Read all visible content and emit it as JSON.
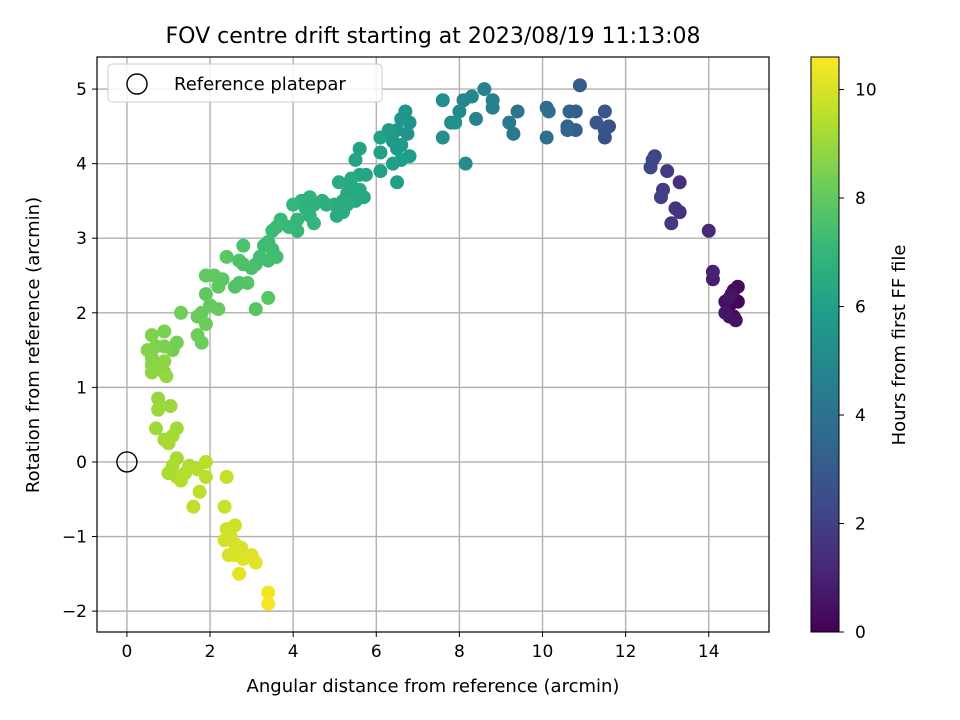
{
  "chart_data": {
    "type": "scatter",
    "title": "FOV centre drift starting at 2023/08/19 11:13:08",
    "xlabel": "Angular distance from reference (arcmin)",
    "ylabel": "Rotation from reference (arcmin)",
    "xlim": [
      -0.72,
      15.45
    ],
    "ylim": [
      -2.28,
      5.43
    ],
    "xticks": [
      0,
      2,
      4,
      6,
      8,
      10,
      12,
      14
    ],
    "yticks": [
      -2,
      -1,
      0,
      1,
      2,
      3,
      4,
      5
    ],
    "xtick_labels": [
      "0",
      "2",
      "4",
      "6",
      "8",
      "10",
      "12",
      "14"
    ],
    "ytick_labels": [
      "−2",
      "−1",
      "0",
      "1",
      "2",
      "3",
      "4",
      "5"
    ],
    "grid": true,
    "legend": {
      "placement": "top-left",
      "entries": [
        "Reference platepar"
      ]
    },
    "reference_point": {
      "name": "Reference platepar",
      "x": 0,
      "y": 0
    },
    "colorbar": {
      "label": "Hours from first FF file",
      "range": [
        0,
        10.6
      ],
      "ticks": [
        0,
        2,
        4,
        6,
        8,
        10
      ],
      "tick_labels": [
        "0",
        "2",
        "4",
        "6",
        "8",
        "10"
      ],
      "colormap": "viridis"
    },
    "series": [
      {
        "points": [
          {
            "x": 14.6,
            "y": 2.15,
            "c": 0.05
          },
          {
            "x": 14.7,
            "y": 2.15,
            "c": 0.1
          },
          {
            "x": 14.5,
            "y": 2.1,
            "c": 0.15
          },
          {
            "x": 14.6,
            "y": 2.3,
            "c": 0.2
          },
          {
            "x": 14.5,
            "y": 1.95,
            "c": 0.25
          },
          {
            "x": 14.7,
            "y": 2.35,
            "c": 0.3
          },
          {
            "x": 14.6,
            "y": 1.95,
            "c": 0.35
          },
          {
            "x": 14.4,
            "y": 2.15,
            "c": 0.4
          },
          {
            "x": 14.55,
            "y": 2.25,
            "c": 0.45
          },
          {
            "x": 14.65,
            "y": 1.9,
            "c": 0.5
          },
          {
            "x": 14.5,
            "y": 2.2,
            "c": 0.55
          },
          {
            "x": 14.4,
            "y": 2.0,
            "c": 0.6
          },
          {
            "x": 14.1,
            "y": 2.45,
            "c": 0.9
          },
          {
            "x": 14.1,
            "y": 2.55,
            "c": 1.0
          },
          {
            "x": 14.0,
            "y": 3.1,
            "c": 1.2
          },
          {
            "x": 13.3,
            "y": 3.75,
            "c": 1.4
          },
          {
            "x": 13.3,
            "y": 3.35,
            "c": 1.5
          },
          {
            "x": 13.2,
            "y": 3.4,
            "c": 1.6
          },
          {
            "x": 13.1,
            "y": 3.2,
            "c": 1.7
          },
          {
            "x": 13.0,
            "y": 3.9,
            "c": 1.8
          },
          {
            "x": 12.9,
            "y": 3.65,
            "c": 1.9
          },
          {
            "x": 12.85,
            "y": 3.55,
            "c": 2.0
          },
          {
            "x": 12.7,
            "y": 4.1,
            "c": 2.1
          },
          {
            "x": 12.6,
            "y": 3.95,
            "c": 2.2
          },
          {
            "x": 12.65,
            "y": 4.05,
            "c": 2.3
          },
          {
            "x": 11.6,
            "y": 4.5,
            "c": 2.5
          },
          {
            "x": 11.5,
            "y": 4.35,
            "c": 2.6
          },
          {
            "x": 11.5,
            "y": 4.45,
            "c": 2.7
          },
          {
            "x": 11.5,
            "y": 4.7,
            "c": 2.8
          },
          {
            "x": 11.3,
            "y": 4.55,
            "c": 2.9
          },
          {
            "x": 10.9,
            "y": 5.05,
            "c": 3.0
          },
          {
            "x": 10.8,
            "y": 4.7,
            "c": 3.1
          },
          {
            "x": 10.8,
            "y": 4.45,
            "c": 3.2
          },
          {
            "x": 10.65,
            "y": 4.7,
            "c": 3.3
          },
          {
            "x": 10.6,
            "y": 4.5,
            "c": 3.4
          },
          {
            "x": 10.6,
            "y": 4.45,
            "c": 3.5
          },
          {
            "x": 10.1,
            "y": 4.75,
            "c": 3.7
          },
          {
            "x": 10.15,
            "y": 4.7,
            "c": 3.8
          },
          {
            "x": 10.1,
            "y": 4.35,
            "c": 3.9
          },
          {
            "x": 9.4,
            "y": 4.7,
            "c": 4.1
          },
          {
            "x": 9.3,
            "y": 4.4,
            "c": 4.2
          },
          {
            "x": 9.2,
            "y": 4.55,
            "c": 4.3
          },
          {
            "x": 8.8,
            "y": 4.85,
            "c": 4.5
          },
          {
            "x": 8.8,
            "y": 4.75,
            "c": 4.6
          },
          {
            "x": 8.6,
            "y": 5.0,
            "c": 4.7
          },
          {
            "x": 8.4,
            "y": 4.6,
            "c": 4.8
          },
          {
            "x": 8.3,
            "y": 4.9,
            "c": 4.85
          },
          {
            "x": 8.1,
            "y": 4.85,
            "c": 4.9
          },
          {
            "x": 8.0,
            "y": 4.7,
            "c": 5.0
          },
          {
            "x": 7.8,
            "y": 4.55,
            "c": 5.1
          },
          {
            "x": 8.15,
            "y": 4.0,
            "c": 5.2
          },
          {
            "x": 7.6,
            "y": 4.85,
            "c": 5.2
          },
          {
            "x": 7.6,
            "y": 4.35,
            "c": 5.3
          },
          {
            "x": 7.9,
            "y": 4.55,
            "c": 5.3
          },
          {
            "x": 6.8,
            "y": 4.55,
            "c": 5.4
          },
          {
            "x": 6.75,
            "y": 4.4,
            "c": 5.45
          },
          {
            "x": 6.7,
            "y": 4.7,
            "c": 5.5
          },
          {
            "x": 6.6,
            "y": 4.6,
            "c": 5.55
          },
          {
            "x": 6.5,
            "y": 4.45,
            "c": 5.6
          },
          {
            "x": 6.4,
            "y": 4.3,
            "c": 5.65
          },
          {
            "x": 6.5,
            "y": 4.2,
            "c": 5.7
          },
          {
            "x": 6.6,
            "y": 4.25,
            "c": 5.75
          },
          {
            "x": 6.3,
            "y": 4.45,
            "c": 5.8
          },
          {
            "x": 6.8,
            "y": 4.1,
            "c": 5.85
          },
          {
            "x": 6.6,
            "y": 4.05,
            "c": 5.9
          },
          {
            "x": 6.4,
            "y": 4.0,
            "c": 5.95
          },
          {
            "x": 6.5,
            "y": 3.75,
            "c": 6.0
          },
          {
            "x": 6.1,
            "y": 3.9,
            "c": 6.0
          },
          {
            "x": 6.1,
            "y": 4.15,
            "c": 6.05
          },
          {
            "x": 6.1,
            "y": 4.35,
            "c": 6.1
          },
          {
            "x": 5.6,
            "y": 4.2,
            "c": 6.1
          },
          {
            "x": 5.5,
            "y": 4.05,
            "c": 6.15
          },
          {
            "x": 5.75,
            "y": 3.85,
            "c": 6.2
          },
          {
            "x": 5.6,
            "y": 3.85,
            "c": 6.2
          },
          {
            "x": 5.4,
            "y": 3.7,
            "c": 6.25
          },
          {
            "x": 5.5,
            "y": 3.5,
            "c": 6.3
          },
          {
            "x": 5.7,
            "y": 3.55,
            "c": 6.3
          },
          {
            "x": 5.4,
            "y": 3.8,
            "c": 6.35
          },
          {
            "x": 5.6,
            "y": 3.65,
            "c": 6.4
          },
          {
            "x": 5.3,
            "y": 3.6,
            "c": 6.4
          },
          {
            "x": 5.2,
            "y": 3.5,
            "c": 6.45
          },
          {
            "x": 5.1,
            "y": 3.75,
            "c": 6.5
          },
          {
            "x": 5.0,
            "y": 3.45,
            "c": 6.5
          },
          {
            "x": 5.05,
            "y": 3.3,
            "c": 6.55
          },
          {
            "x": 5.3,
            "y": 3.45,
            "c": 6.6
          },
          {
            "x": 5.2,
            "y": 3.35,
            "c": 6.6
          },
          {
            "x": 4.7,
            "y": 3.5,
            "c": 6.7
          },
          {
            "x": 4.8,
            "y": 3.45,
            "c": 6.7
          },
          {
            "x": 4.5,
            "y": 3.45,
            "c": 6.75
          },
          {
            "x": 4.4,
            "y": 3.55,
            "c": 6.8
          },
          {
            "x": 4.3,
            "y": 3.4,
            "c": 6.85
          },
          {
            "x": 4.2,
            "y": 3.5,
            "c": 6.9
          },
          {
            "x": 4.4,
            "y": 3.3,
            "c": 6.9
          },
          {
            "x": 4.5,
            "y": 3.2,
            "c": 6.95
          },
          {
            "x": 4.1,
            "y": 3.25,
            "c": 7.0
          },
          {
            "x": 4.0,
            "y": 3.45,
            "c": 7.0
          },
          {
            "x": 4.1,
            "y": 3.1,
            "c": 7.05
          },
          {
            "x": 3.9,
            "y": 3.15,
            "c": 7.1
          },
          {
            "x": 3.7,
            "y": 3.25,
            "c": 7.15
          },
          {
            "x": 3.6,
            "y": 3.15,
            "c": 7.2
          },
          {
            "x": 3.5,
            "y": 3.1,
            "c": 7.2
          },
          {
            "x": 3.4,
            "y": 2.95,
            "c": 7.25
          },
          {
            "x": 3.5,
            "y": 2.85,
            "c": 7.3
          },
          {
            "x": 3.3,
            "y": 2.9,
            "c": 7.3
          },
          {
            "x": 3.6,
            "y": 2.75,
            "c": 7.35
          },
          {
            "x": 3.4,
            "y": 2.7,
            "c": 7.4
          },
          {
            "x": 3.2,
            "y": 2.75,
            "c": 7.4
          },
          {
            "x": 3.1,
            "y": 2.65,
            "c": 7.45
          },
          {
            "x": 3.0,
            "y": 2.6,
            "c": 7.5
          },
          {
            "x": 2.8,
            "y": 2.65,
            "c": 7.55
          },
          {
            "x": 2.7,
            "y": 2.7,
            "c": 7.6
          },
          {
            "x": 2.8,
            "y": 2.9,
            "c": 7.6
          },
          {
            "x": 2.6,
            "y": 2.35,
            "c": 7.65
          },
          {
            "x": 2.7,
            "y": 2.4,
            "c": 7.7
          },
          {
            "x": 2.9,
            "y": 2.4,
            "c": 7.75
          },
          {
            "x": 3.4,
            "y": 2.2,
            "c": 7.8
          },
          {
            "x": 3.1,
            "y": 2.05,
            "c": 7.8
          },
          {
            "x": 2.4,
            "y": 2.75,
            "c": 7.85
          },
          {
            "x": 2.3,
            "y": 2.45,
            "c": 7.9
          },
          {
            "x": 2.2,
            "y": 2.35,
            "c": 7.9
          },
          {
            "x": 2.1,
            "y": 2.5,
            "c": 7.95
          },
          {
            "x": 1.9,
            "y": 2.5,
            "c": 8.0
          },
          {
            "x": 1.9,
            "y": 2.25,
            "c": 8.0
          },
          {
            "x": 2.0,
            "y": 2.1,
            "c": 8.05
          },
          {
            "x": 2.2,
            "y": 2.05,
            "c": 8.1
          },
          {
            "x": 1.8,
            "y": 2.0,
            "c": 8.1
          },
          {
            "x": 1.7,
            "y": 1.95,
            "c": 8.15
          },
          {
            "x": 1.9,
            "y": 1.85,
            "c": 8.2
          },
          {
            "x": 1.8,
            "y": 1.6,
            "c": 8.2
          },
          {
            "x": 1.7,
            "y": 1.7,
            "c": 8.25
          },
          {
            "x": 1.3,
            "y": 2.0,
            "c": 8.3
          },
          {
            "x": 1.2,
            "y": 1.6,
            "c": 8.35
          },
          {
            "x": 1.1,
            "y": 1.5,
            "c": 8.4
          },
          {
            "x": 0.9,
            "y": 1.75,
            "c": 8.45
          },
          {
            "x": 0.9,
            "y": 1.55,
            "c": 8.5
          },
          {
            "x": 0.7,
            "y": 1.55,
            "c": 8.5
          },
          {
            "x": 0.6,
            "y": 1.7,
            "c": 8.55
          },
          {
            "x": 0.5,
            "y": 1.5,
            "c": 8.6
          },
          {
            "x": 0.6,
            "y": 1.4,
            "c": 8.65
          },
          {
            "x": 0.6,
            "y": 1.3,
            "c": 8.7
          },
          {
            "x": 0.7,
            "y": 1.25,
            "c": 8.7
          },
          {
            "x": 0.9,
            "y": 1.2,
            "c": 8.75
          },
          {
            "x": 0.9,
            "y": 1.35,
            "c": 8.8
          },
          {
            "x": 0.6,
            "y": 1.2,
            "c": 8.8
          },
          {
            "x": 0.95,
            "y": 1.15,
            "c": 8.85
          },
          {
            "x": 0.75,
            "y": 0.85,
            "c": 8.9
          },
          {
            "x": 0.8,
            "y": 0.75,
            "c": 8.95
          },
          {
            "x": 1.05,
            "y": 0.75,
            "c": 9.0
          },
          {
            "x": 0.75,
            "y": 0.7,
            "c": 9.0
          },
          {
            "x": 0.7,
            "y": 0.45,
            "c": 9.05
          },
          {
            "x": 1.2,
            "y": 0.45,
            "c": 9.1
          },
          {
            "x": 0.9,
            "y": 0.3,
            "c": 9.1
          },
          {
            "x": 1.1,
            "y": 0.35,
            "c": 9.15
          },
          {
            "x": 1.0,
            "y": 0.25,
            "c": 9.2
          },
          {
            "x": 1.2,
            "y": 0.05,
            "c": 9.2
          },
          {
            "x": 1.1,
            "y": -0.05,
            "c": 9.25
          },
          {
            "x": 1.0,
            "y": -0.15,
            "c": 9.3
          },
          {
            "x": 1.2,
            "y": -0.2,
            "c": 9.3
          },
          {
            "x": 1.5,
            "y": -0.05,
            "c": 9.35
          },
          {
            "x": 1.4,
            "y": -0.15,
            "c": 9.4
          },
          {
            "x": 1.3,
            "y": -0.25,
            "c": 9.4
          },
          {
            "x": 1.7,
            "y": -0.1,
            "c": 9.45
          },
          {
            "x": 1.9,
            "y": 0.0,
            "c": 9.5
          },
          {
            "x": 1.9,
            "y": -0.2,
            "c": 9.5
          },
          {
            "x": 1.75,
            "y": -0.4,
            "c": 9.55
          },
          {
            "x": 1.6,
            "y": -0.6,
            "c": 9.6
          },
          {
            "x": 2.4,
            "y": -0.2,
            "c": 9.7
          },
          {
            "x": 2.35,
            "y": -0.6,
            "c": 9.75
          },
          {
            "x": 2.4,
            "y": -0.9,
            "c": 9.8
          },
          {
            "x": 2.6,
            "y": -0.85,
            "c": 9.85
          },
          {
            "x": 2.5,
            "y": -1.0,
            "c": 9.9
          },
          {
            "x": 2.35,
            "y": -1.05,
            "c": 9.9
          },
          {
            "x": 2.6,
            "y": -1.1,
            "c": 9.95
          },
          {
            "x": 2.75,
            "y": -1.15,
            "c": 10.0
          },
          {
            "x": 2.45,
            "y": -1.25,
            "c": 10.0
          },
          {
            "x": 2.6,
            "y": -1.25,
            "c": 10.05
          },
          {
            "x": 2.8,
            "y": -1.3,
            "c": 10.1
          },
          {
            "x": 3.0,
            "y": -1.25,
            "c": 10.1
          },
          {
            "x": 3.1,
            "y": -1.35,
            "c": 10.15
          },
          {
            "x": 2.7,
            "y": -1.5,
            "c": 10.2
          },
          {
            "x": 3.4,
            "y": -1.75,
            "c": 10.4
          },
          {
            "x": 3.4,
            "y": -1.9,
            "c": 10.5
          }
        ]
      }
    ]
  }
}
